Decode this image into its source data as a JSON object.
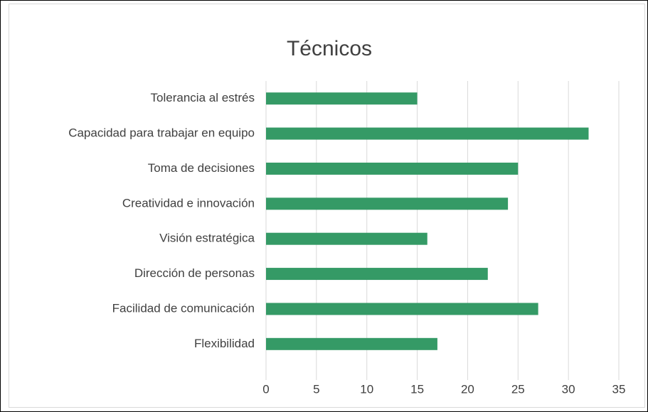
{
  "chart_data": {
    "type": "barh",
    "title": "Técnicos",
    "categories": [
      "Tolerancia al estrés",
      "Capacidad para trabajar en equipo",
      "Toma de decisiones",
      "Creatividad e innovación",
      "Visión estratégica",
      "Dirección de personas",
      "Facilidad de comunicación",
      "Flexibilidad"
    ],
    "values": [
      15,
      32,
      25,
      24,
      16,
      22,
      27,
      17
    ],
    "color": "#359a66",
    "xlim": [
      0,
      35
    ],
    "xticks": [
      0,
      5,
      10,
      15,
      20,
      25,
      30,
      35
    ],
    "grid": true
  }
}
